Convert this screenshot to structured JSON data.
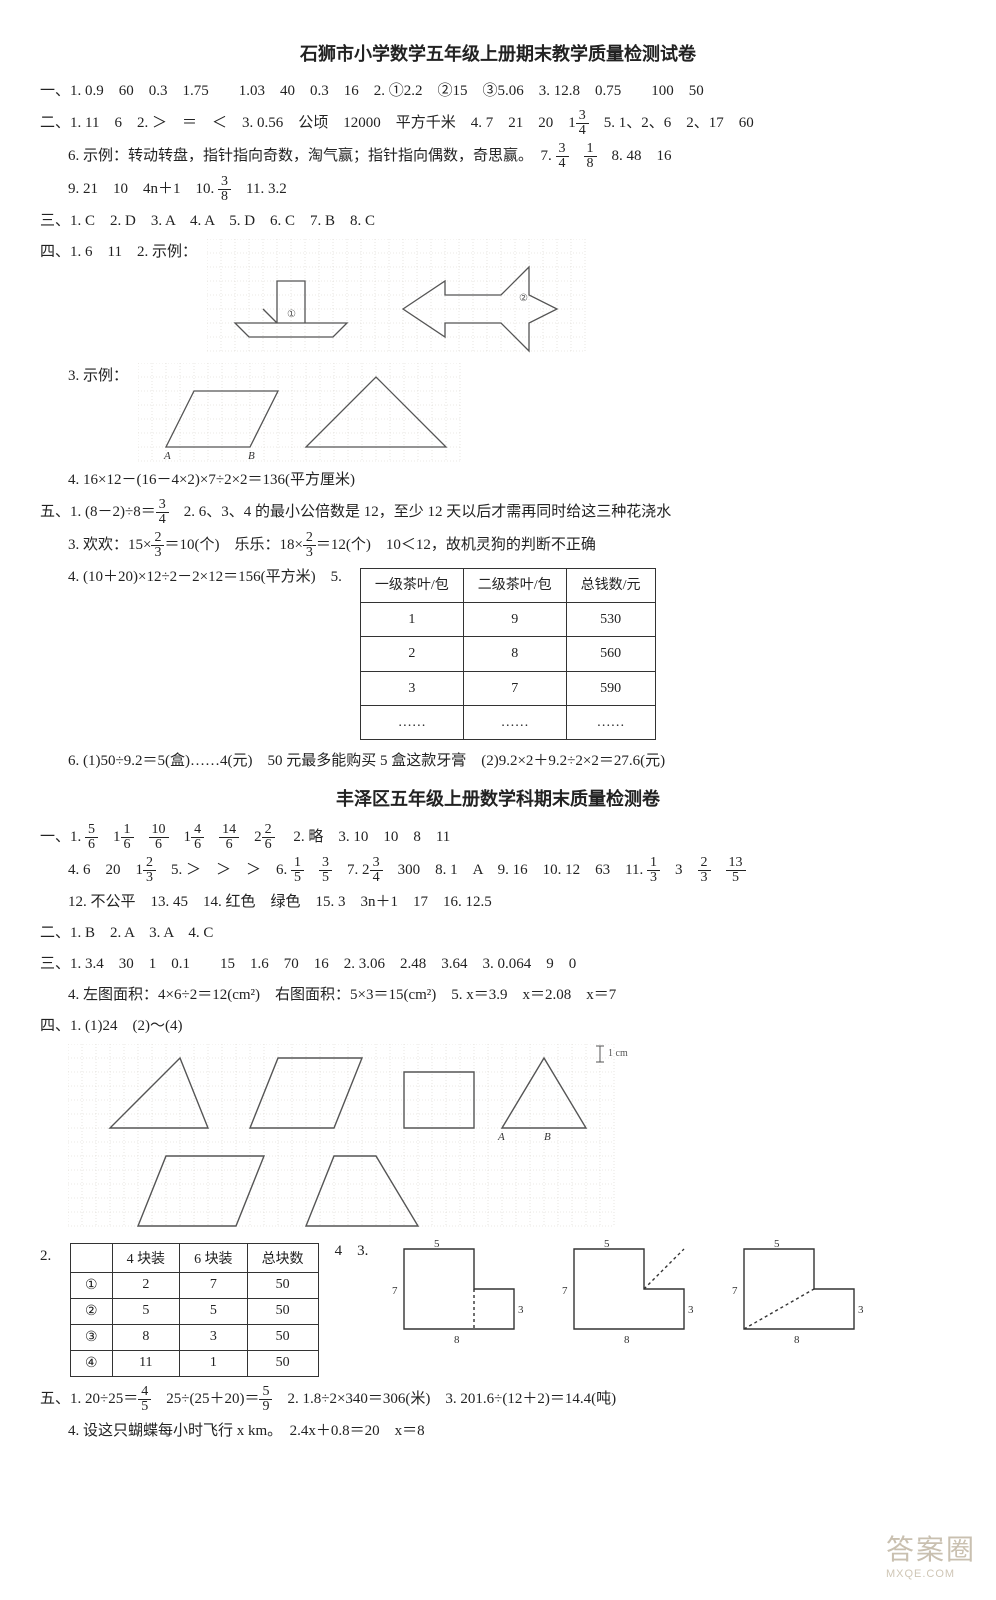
{
  "paper1": {
    "title": "石狮市小学数学五年级上册期末教学质量检测试卷",
    "s1_1": "一、1. 0.9　60　0.3　1.75　　1.03　40　0.3　16　2. ①2.2　②15　③5.06　3. 12.8　0.75　　100　50",
    "s2_1a": "二、1. 11　6　2. ＞　＝　＜　3. 0.56　公顷　12000　平方千米　4. 7　21　20　1",
    "s2_1b": "　5. 1、2、6　2、17　60",
    "s2_6a": "6. 示例：转动转盘，指针指向奇数，淘气赢；指针指向偶数，奇思赢。　7. ",
    "s2_6b": "　8. 48　16",
    "s2_9a": "9. 21　10　4n＋1　10. ",
    "s2_9b": "　11. 3.2",
    "s3": "三、1. C　2. D　3. A　4. A　5. D　6. C　7. B　8. C",
    "s4_1": "四、1. 6　11　2. 示例：",
    "s4_3": "3. 示例：",
    "s4_4": "4. 16×12－(16－4×2)×7÷2×2＝136(平方厘米)",
    "s5_1a": "五、1. (8－2)÷8＝",
    "s5_1b": "　2. 6、3、4 的最小公倍数是 12，至少 12 天以后才需再同时给这三种花浇水",
    "s5_3a": "3. 欢欢：15×",
    "s5_3b": "＝10(个)　乐乐：18×",
    "s5_3c": "＝12(个)　10＜12，故机灵狗的判断不正确",
    "s5_4": "4. (10＋20)×12÷2－2×12＝156(平方米)　5.",
    "s5_6": "6. (1)50÷9.2＝5(盒)……4(元)　50 元最多能购买 5 盒这款牙膏　(2)9.2×2＋9.2÷2×2＝27.6(元)",
    "table5": {
      "headers": [
        "一级茶叶/包",
        "二级茶叶/包",
        "总钱数/元"
      ],
      "rows": [
        [
          "1",
          "9",
          "530"
        ],
        [
          "2",
          "8",
          "560"
        ],
        [
          "3",
          "7",
          "590"
        ],
        [
          "……",
          "……",
          "……"
        ]
      ]
    }
  },
  "paper2": {
    "title": "丰泽区五年级上册数学科期末质量检测卷",
    "s1_1a": "一、1. ",
    "s1_1b": "　2. 略　3. 10　10　8　11",
    "s1_4a": "4. 6　20　1",
    "s1_4b": "　5. ＞　＞　＞　6. ",
    "s1_4c": "　7. 2",
    "s1_4d": "　300　8. 1　A　9. 16　10. 12　63　11. ",
    "s1_12": "12. 不公平　13. 45　14. 红色　绿色　15. 3　3n＋1　17　16. 12.5",
    "s2": "二、1. B　2. A　3. A　4. C",
    "s3_1": "三、1. 3.4　30　1　0.1　　15　1.6　70　16　2. 3.06　2.48　3.64　3. 0.064　9　0",
    "s3_4": "4. 左图面积：4×6÷2＝12(cm²)　右图面积：5×3＝15(cm²)　5. x＝3.9　x＝2.08　x＝7",
    "s4_1": "四、1. (1)24　(2)～(4)",
    "s4_2": "2.",
    "s4_3lbl": "4　3.",
    "table2": {
      "headers": [
        "",
        "4 块装",
        "6 块装",
        "总块数"
      ],
      "rows": [
        [
          "①",
          "2",
          "7",
          "50"
        ],
        [
          "②",
          "5",
          "5",
          "50"
        ],
        [
          "③",
          "8",
          "3",
          "50"
        ],
        [
          "④",
          "11",
          "1",
          "50"
        ]
      ]
    },
    "s5_1a": "五、1. 20÷25＝",
    "s5_1b": "　25÷(25＋20)＝",
    "s5_1c": "　2. 1.8÷2×340＝306(米)　3. 201.6÷(12＋2)＝14.4(吨)",
    "s5_4": "4. 设这只蝴蝶每小时飞行 x km。　2.4x＋0.8＝20　x＝8"
  },
  "fracs": {
    "f3_4": {
      "n": "3",
      "d": "4"
    },
    "f1_8": {
      "n": "1",
      "d": "8"
    },
    "f3_8": {
      "n": "3",
      "d": "8"
    },
    "f2_3": {
      "n": "2",
      "d": "3"
    },
    "f5_6": {
      "n": "5",
      "d": "6"
    },
    "f1_6": {
      "n": "1",
      "d": "6"
    },
    "f10_6": {
      "n": "10",
      "d": "6"
    },
    "f4_6": {
      "n": "4",
      "d": "6"
    },
    "f14_6": {
      "n": "14",
      "d": "6"
    },
    "f2_6": {
      "n": "2",
      "d": "6"
    },
    "f1_5": {
      "n": "1",
      "d": "5"
    },
    "f3_5": {
      "n": "3",
      "d": "5"
    },
    "f1_3": {
      "n": "1",
      "d": "3"
    },
    "f13_5": {
      "n": "13",
      "d": "5"
    },
    "f4_5": {
      "n": "4",
      "d": "5"
    },
    "f5_9": {
      "n": "5",
      "d": "9"
    }
  },
  "figs": {
    "grid_color": "#d8d4cc",
    "line_color": "#555555",
    "cell": 14
  },
  "watermark": {
    "main": "答案圈",
    "sub": "MXQE.COM"
  }
}
